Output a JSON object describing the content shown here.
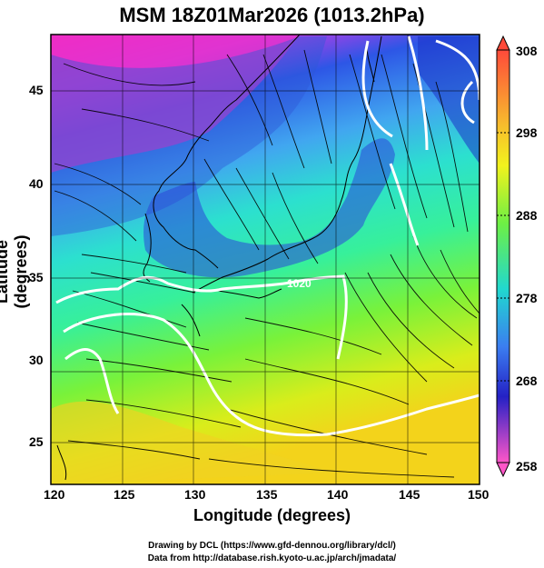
{
  "title": "MSM 18Z01Mar2026 (1013.2hPa)",
  "axes": {
    "xlabel": "Longitude (degrees)",
    "ylabel": "Latitude  (degrees)",
    "xticks": [
      "120",
      "125",
      "130",
      "135",
      "140",
      "145",
      "150"
    ],
    "yticks": [
      "45",
      "40",
      "35",
      "30",
      "25"
    ]
  },
  "colorbar": {
    "ticks": [
      "308",
      "298",
      "288",
      "278",
      "268",
      "258"
    ]
  },
  "map": {
    "contour_labels": [
      "1020"
    ]
  },
  "footer": {
    "line1": "Drawing by DCL (https://www.gfd-dennou.org/library/dcl/)",
    "line2": "Data from http://database.rish.kyoto-u.ac.jp/arch/jmadata/"
  },
  "colors": {
    "cold": "#e020c8",
    "cool": "#2040e8",
    "mid": "#20d0e0",
    "warm": "#40e040",
    "hot": "#f0e020",
    "contour": "#ffffff",
    "streamline": "#000000"
  }
}
